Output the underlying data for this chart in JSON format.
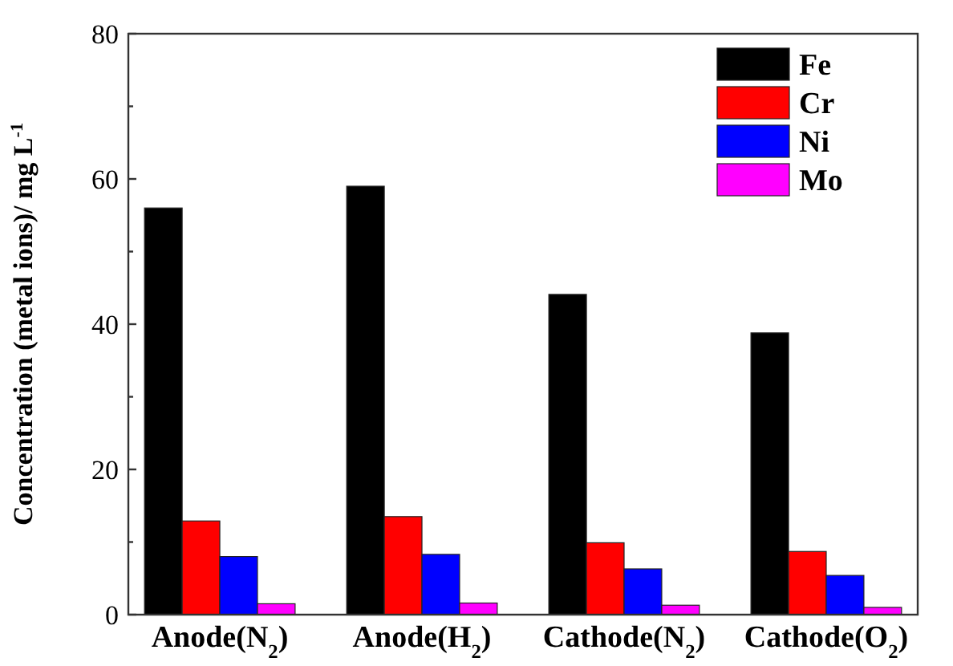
{
  "chart_data": {
    "type": "bar",
    "ylabel": "Concentration (metal ions)/ mg L$^{-1}$",
    "categories": [
      "Anode(N$_{2}$)",
      "Anode(H$_{2}$)",
      "Cathode(N$_{2}$)",
      "Cathode(O$_{2}$)"
    ],
    "series": [
      {
        "name": "Fe",
        "color": "#000000",
        "values": [
          56,
          59,
          44.1,
          38.8
        ]
      },
      {
        "name": "Cr",
        "color": "#ff0000",
        "values": [
          12.9,
          13.5,
          9.9,
          8.7
        ]
      },
      {
        "name": "Ni",
        "color": "#0000ff",
        "values": [
          8,
          8.3,
          6.3,
          5.4
        ]
      },
      {
        "name": "Mo",
        "color": "#ff00ff",
        "values": [
          1.5,
          1.6,
          1.3,
          1.0
        ]
      }
    ],
    "ylim": [
      0,
      80
    ],
    "yticks": [
      0,
      {
        "value": 10,
        "label": null
      },
      20,
      {
        "value": 30,
        "label": null
      },
      40,
      {
        "value": 50,
        "label": null
      },
      60,
      {
        "value": 70,
        "label": null
      },
      80
    ],
    "grid": false,
    "legend": "top right"
  }
}
